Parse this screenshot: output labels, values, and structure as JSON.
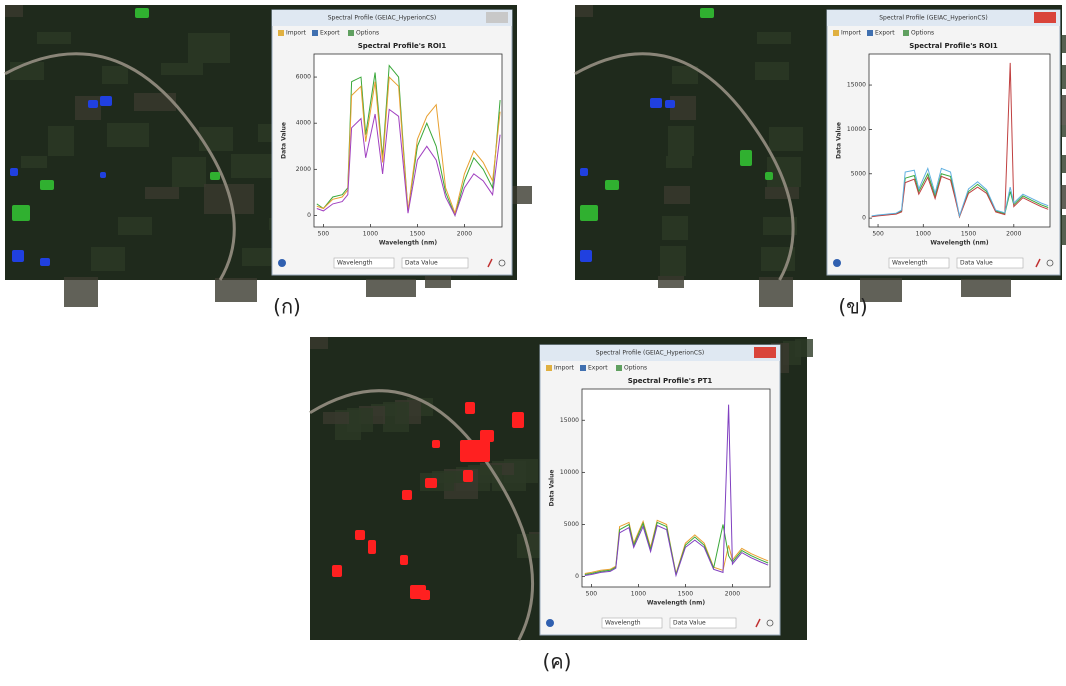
{
  "panels": [
    {
      "caption": "(ก)",
      "window": {
        "title": "Spectral Profile (GEIAC_HyperionCS)",
        "menu": [
          "Import",
          "Export",
          "Options"
        ],
        "footer": {
          "x_select": "Wavelength",
          "y_select": "Data Value"
        },
        "chart": {
          "type": "line",
          "title": "Spectral Profile's ROI1",
          "x_label": "Wavelength (nm)",
          "y_label": "Data Value",
          "x": [
            430,
            500,
            600,
            700,
            760,
            800,
            900,
            950,
            1050,
            1130,
            1200,
            1300,
            1350,
            1400,
            1500,
            1600,
            1700,
            1800,
            1900,
            2000,
            2100,
            2200,
            2300,
            2380
          ],
          "series": [
            {
              "color": "#3aa83a",
              "values": [
                500,
                300,
                800,
                900,
                1200,
                5800,
                6000,
                3500,
                6200,
                2500,
                6500,
                6000,
                3000,
                200,
                3000,
                4000,
                3000,
                1000,
                0,
                1500,
                2500,
                2000,
                1200,
                5000
              ]
            },
            {
              "color": "#e8a030",
              "values": [
                400,
                300,
                700,
                800,
                1100,
                5200,
                5600,
                3200,
                5800,
                2300,
                6000,
                5600,
                2800,
                200,
                3300,
                4300,
                4800,
                1200,
                100,
                1800,
                2800,
                2300,
                1500,
                4500
              ]
            },
            {
              "color": "#a040c0",
              "values": [
                300,
                200,
                500,
                600,
                900,
                3800,
                4200,
                2500,
                4400,
                1800,
                4600,
                4300,
                2200,
                100,
                2400,
                3000,
                2400,
                800,
                0,
                1200,
                1800,
                1500,
                900,
                3500
              ]
            }
          ],
          "xlim": [
            400,
            2400
          ],
          "ylim": [
            -500,
            7000
          ],
          "xticks": [
            500,
            1000,
            1500,
            2000
          ],
          "yticks": [
            0,
            2000,
            4000,
            6000
          ]
        }
      }
    },
    {
      "caption": "(ข)",
      "window": {
        "title": "Spectral Profile (GEIAC_HyperionCS)",
        "menu": [
          "Import",
          "Export",
          "Options"
        ],
        "footer": {
          "x_select": "Wavelength",
          "y_select": "Data Value"
        },
        "chart": {
          "type": "line",
          "title": "Spectral Profile's ROI1",
          "x_label": "Wavelength (nm)",
          "y_label": "Data Value",
          "x": [
            430,
            500,
            600,
            700,
            760,
            800,
            900,
            950,
            1050,
            1130,
            1200,
            1300,
            1350,
            1400,
            1500,
            1600,
            1700,
            1800,
            1900,
            1960,
            2000,
            2100,
            2200,
            2300,
            2380
          ],
          "series": [
            {
              "color": "#3aa83a",
              "values": [
                200,
                300,
                400,
                500,
                800,
                4500,
                4800,
                3000,
                5000,
                2500,
                5000,
                4700,
                2500,
                200,
                3000,
                3800,
                3000,
                800,
                500,
                3000,
                1500,
                2500,
                2000,
                1500,
                1200
              ]
            },
            {
              "color": "#c04040",
              "values": [
                150,
                250,
                350,
                450,
                700,
                4000,
                4400,
                2700,
                4600,
                2200,
                4700,
                4300,
                2300,
                150,
                2800,
                3500,
                2800,
                700,
                400,
                17500,
                1300,
                2300,
                1800,
                1300,
                1000
              ]
            },
            {
              "color": "#60b0e0",
              "values": [
                250,
                350,
                450,
                550,
                900,
                5200,
                5400,
                3300,
                5600,
                2800,
                5600,
                5200,
                2800,
                250,
                3300,
                4100,
                3200,
                900,
                600,
                3500,
                1700,
                2700,
                2200,
                1700,
                1400
              ]
            }
          ],
          "xlim": [
            400,
            2400
          ],
          "ylim": [
            -1000,
            18500
          ],
          "xticks": [
            500,
            1000,
            1500,
            2000
          ],
          "yticks": [
            0,
            5000,
            10000,
            15000
          ]
        }
      }
    },
    {
      "caption": "(ค)",
      "window": {
        "title": "Spectral Profile (GEIAC_HyperionCS)",
        "menu": [
          "Import",
          "Export",
          "Options"
        ],
        "footer": {
          "x_select": "Wavelength",
          "y_select": "Data Value"
        },
        "chart": {
          "type": "line",
          "title": "Spectral Profile's PT1",
          "x_label": "Wavelength (nm)",
          "y_label": "Data Value",
          "x": [
            430,
            500,
            600,
            700,
            760,
            800,
            900,
            950,
            1050,
            1130,
            1200,
            1300,
            1350,
            1400,
            1500,
            1600,
            1700,
            1800,
            1900,
            1960,
            2000,
            2100,
            2200,
            2300,
            2380
          ],
          "series": [
            {
              "color": "#e8a030",
              "values": [
                300,
                400,
                600,
                700,
                1000,
                4800,
                5200,
                3200,
                5300,
                2800,
                5400,
                5000,
                2600,
                300,
                3200,
                4000,
                3200,
                900,
                600,
                3000,
                1600,
                2700,
                2200,
                1800,
                1500
              ]
            },
            {
              "color": "#3aa83a",
              "values": [
                200,
                300,
                500,
                600,
                900,
                4500,
                5000,
                3000,
                5100,
                2600,
                5200,
                4800,
                2500,
                200,
                3000,
                3800,
                3000,
                800,
                5000,
                2000,
                1400,
                2500,
                2000,
                1600,
                1300
              ]
            },
            {
              "color": "#8040c0",
              "values": [
                100,
                200,
                400,
                500,
                800,
                4200,
                4700,
                2800,
                4800,
                2400,
                4900,
                4500,
                2300,
                100,
                2800,
                3500,
                2800,
                700,
                400,
                16500,
                1200,
                2300,
                1800,
                1400,
                1100
              ]
            }
          ],
          "xlim": [
            400,
            2400
          ],
          "ylim": [
            -1000,
            18000
          ],
          "xticks": [
            500,
            1000,
            1500,
            2000
          ],
          "yticks": [
            0,
            5000,
            10000,
            15000
          ]
        }
      }
    }
  ]
}
